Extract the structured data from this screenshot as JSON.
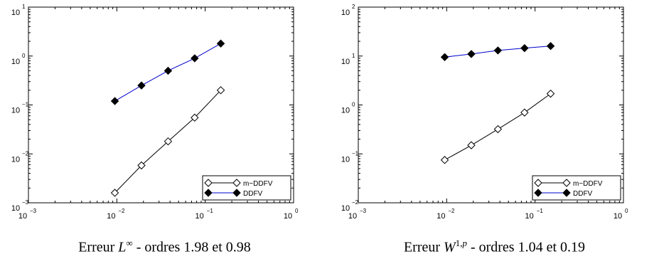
{
  "chart_data": [
    {
      "type": "line",
      "xscale": "log",
      "yscale": "log",
      "xlim": [
        0.001,
        1
      ],
      "ylim": [
        0.001,
        10
      ],
      "xticks": [
        {
          "base": "10",
          "exp": "−3"
        },
        {
          "base": "10",
          "exp": "−2"
        },
        {
          "base": "10",
          "exp": "−1"
        },
        {
          "base": "10",
          "exp": "0"
        }
      ],
      "yticks": [
        {
          "base": "10",
          "exp": "1"
        },
        {
          "base": "10",
          "exp": "0"
        },
        {
          "base": "10",
          "exp": "−1"
        },
        {
          "base": "10",
          "exp": "−2"
        },
        {
          "base": "10",
          "exp": "−3"
        }
      ],
      "legend_position": "bottom-right",
      "series": [
        {
          "name": "m−DDFV",
          "color": "#000000",
          "marker": "diamond-open",
          "x": [
            0.0095,
            0.019,
            0.038,
            0.076,
            0.15
          ],
          "y": [
            0.0016,
            0.0058,
            0.018,
            0.055,
            0.2
          ]
        },
        {
          "name": "DDFV",
          "color": "#0000cc",
          "marker": "diamond-filled",
          "x": [
            0.0095,
            0.019,
            0.038,
            0.076,
            0.15
          ],
          "y": [
            0.12,
            0.25,
            0.5,
            0.9,
            1.8
          ]
        }
      ]
    },
    {
      "type": "line",
      "xscale": "log",
      "yscale": "log",
      "xlim": [
        0.001,
        1
      ],
      "ylim": [
        0.01,
        100
      ],
      "xticks": [
        {
          "base": "10",
          "exp": "−3"
        },
        {
          "base": "10",
          "exp": "−2"
        },
        {
          "base": "10",
          "exp": "−1"
        },
        {
          "base": "10",
          "exp": "0"
        }
      ],
      "yticks": [
        {
          "base": "10",
          "exp": "2"
        },
        {
          "base": "10",
          "exp": "1"
        },
        {
          "base": "10",
          "exp": "0"
        },
        {
          "base": "10",
          "exp": "−1"
        },
        {
          "base": "10",
          "exp": "−2"
        }
      ],
      "legend_position": "bottom-right",
      "series": [
        {
          "name": "m−DDFV",
          "color": "#000000",
          "marker": "diamond-open",
          "x": [
            0.0095,
            0.019,
            0.038,
            0.076,
            0.15
          ],
          "y": [
            0.075,
            0.15,
            0.32,
            0.7,
            1.7
          ]
        },
        {
          "name": "DDFV",
          "color": "#0000cc",
          "marker": "diamond-filled",
          "x": [
            0.0095,
            0.019,
            0.038,
            0.076,
            0.15
          ],
          "y": [
            9.5,
            11,
            13,
            14.5,
            16
          ]
        }
      ]
    }
  ],
  "captions": [
    {
      "prefix": "Erreur ",
      "sym": "L",
      "sup": "∞",
      "sup_extra": "",
      "suffix": " - ordres 1.98 et 0.98"
    },
    {
      "prefix": "Erreur ",
      "sym": "W",
      "sup": "1,",
      "sup_extra": "p",
      "suffix": " - ordres 1.04 et 0.19"
    }
  ]
}
